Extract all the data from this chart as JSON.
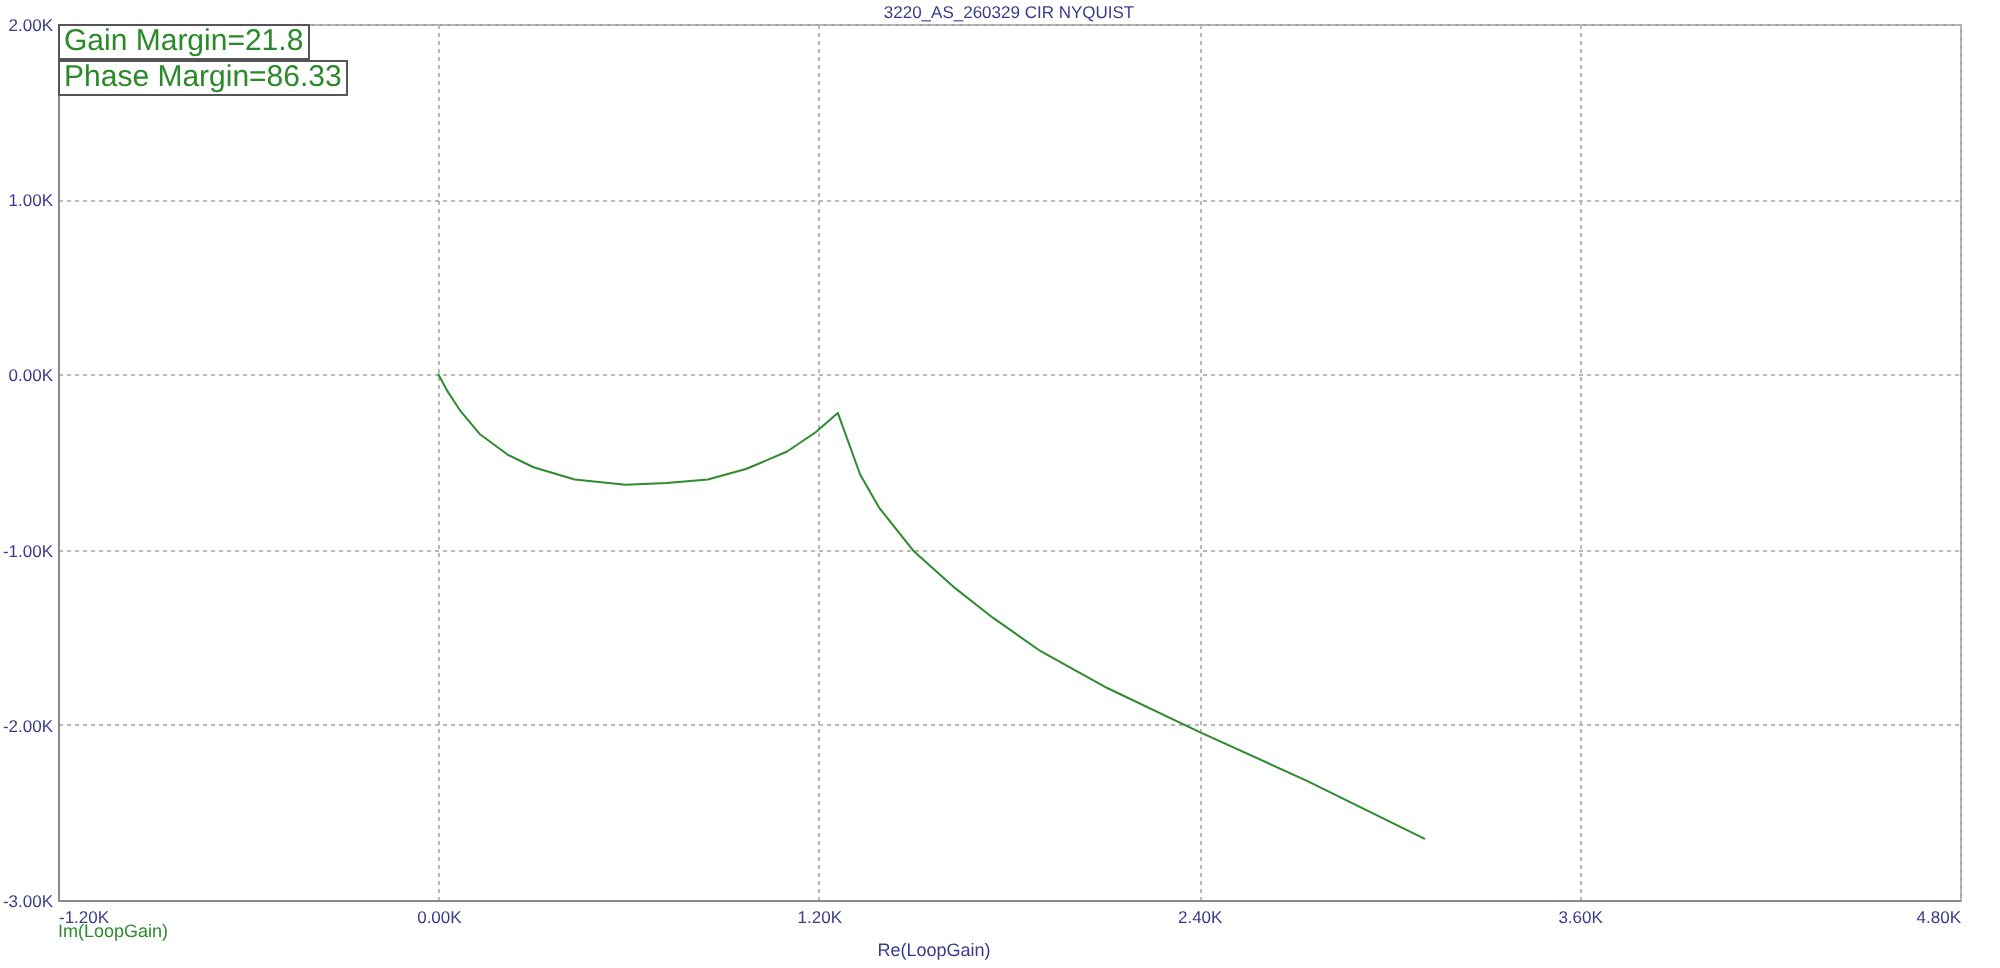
{
  "chart_data": {
    "type": "line",
    "title": "3220_AS_260329 CIR NYQUIST",
    "xlabel": "Re(LoopGain)",
    "annotations": [
      "Gain Margin=21.8",
      "Phase Margin=86.33"
    ],
    "x": [
      0,
      30,
      70,
      130,
      220,
      300,
      430,
      590,
      720,
      850,
      970,
      1010,
      1100,
      1190,
      1260,
      1330,
      1390,
      1500,
      1630,
      1750,
      1900,
      2110,
      2400,
      2740,
      3110
    ],
    "series": [
      {
        "name": "Im(LoopGain)",
        "color": "#2e8b2e",
        "values": [
          0,
          -100,
          -210,
          -340,
          -460,
          -530,
          -600,
          -630,
          -620,
          -600,
          -540,
          -510,
          -440,
          -330,
          -220,
          -570,
          -760,
          -1010,
          -1220,
          -1390,
          -1580,
          -1790,
          -2040,
          -2320,
          -2650
        ]
      }
    ],
    "xlim": [
      -1200,
      4800
    ],
    "ylim": [
      -3000,
      2000
    ],
    "xticks": [
      {
        "value": -1200,
        "label": "-1.20K"
      },
      {
        "value": 0,
        "label": "0.00K"
      },
      {
        "value": 1200,
        "label": "1.20K"
      },
      {
        "value": 2400,
        "label": "2.40K"
      },
      {
        "value": 3600,
        "label": "3.60K"
      },
      {
        "value": 4800,
        "label": "4.80K"
      }
    ],
    "yticks": [
      {
        "value": -3000,
        "label": "-3.00K"
      },
      {
        "value": -2000,
        "label": "-2.00K"
      },
      {
        "value": -1000,
        "label": "-1.00K"
      },
      {
        "value": 0,
        "label": "0.00K"
      },
      {
        "value": 1000,
        "label": "1.00K"
      },
      {
        "value": 2000,
        "label": "2.00K"
      }
    ],
    "grid": true,
    "legend": "bottom left"
  }
}
